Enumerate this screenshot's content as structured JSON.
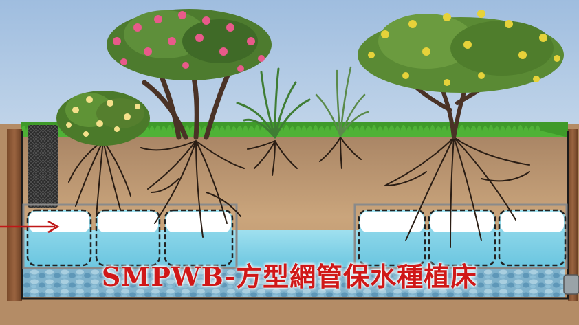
{
  "caption": "SMPWB-方型網管保水種植床",
  "colors": {
    "sky": "#a8c2e0",
    "soil": "#c8a37a",
    "water": "#8fd8ea",
    "caption": "#d01818"
  }
}
